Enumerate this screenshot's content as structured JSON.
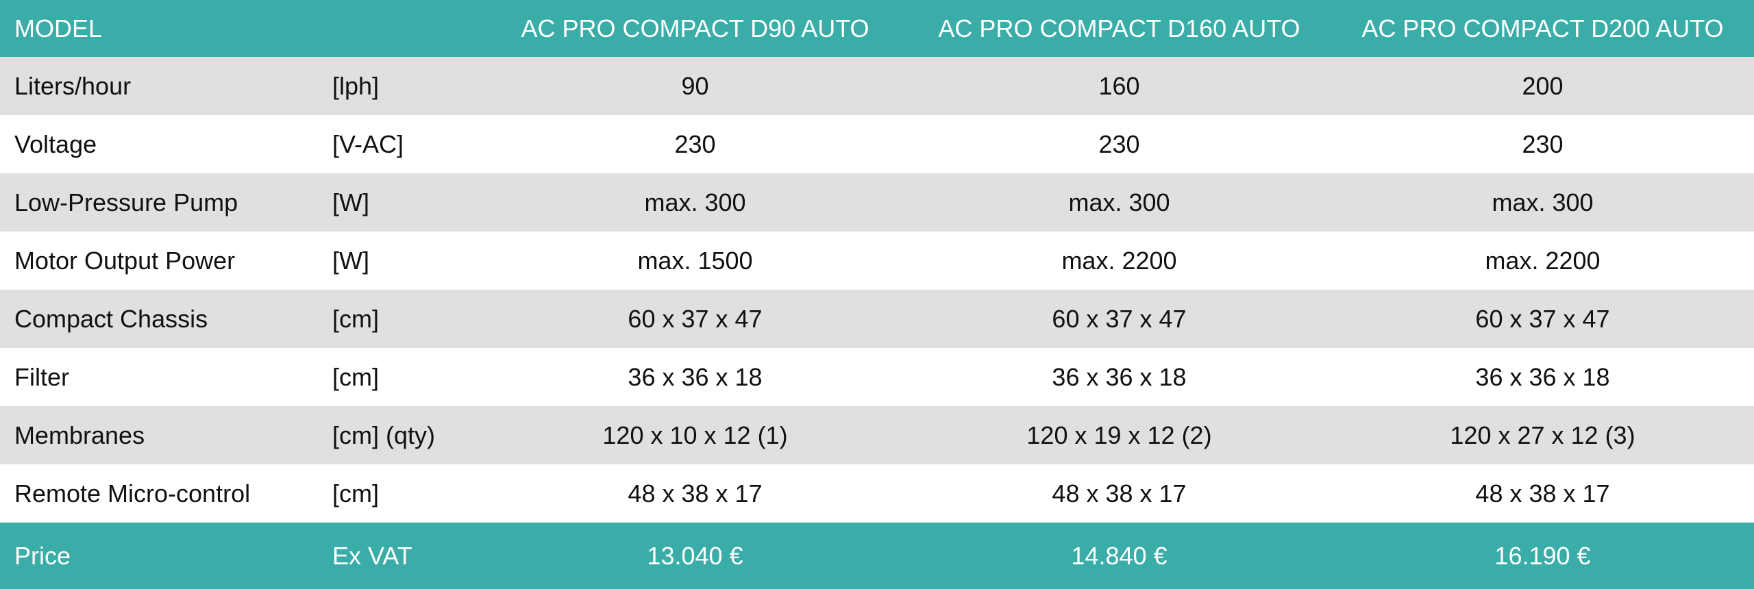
{
  "header": {
    "label": "MODEL",
    "models": [
      "AC PRO COMPACT D90 AUTO",
      "AC PRO COMPACT D160 AUTO",
      "AC PRO COMPACT D200 AUTO"
    ]
  },
  "rows": [
    [
      "Liters/hour",
      "[lph]",
      "90",
      "160",
      "200"
    ],
    [
      "Voltage",
      "[V-AC]",
      "230",
      "230",
      "230"
    ],
    [
      "Low-Pressure Pump",
      "[W]",
      "max. 300",
      "max. 300",
      "max. 300"
    ],
    [
      "Motor Output Power",
      "[W]",
      "max. 1500",
      "max. 2200",
      "max. 2200"
    ],
    [
      "Compact Chassis",
      "[cm]",
      "60 x 37 x 47",
      "60 x 37 x 47",
      "60 x 37 x 47"
    ],
    [
      "Filter",
      "[cm]",
      "36 x 36 x 18",
      "36 x 36 x 18",
      "36 x 36 x 18"
    ],
    [
      "Membranes",
      "[cm] (qty)",
      "120 x 10 x 12 (1)",
      "120 x 19 x 12 (2)",
      "120 x 27 x 12 (3)"
    ],
    [
      "Remote Micro-control",
      "[cm]",
      "48 x 38 x 17",
      "48 x 38 x 17",
      "48 x 38 x 17"
    ]
  ],
  "price": {
    "label": "Price",
    "unit": "Ex VAT",
    "values": [
      "13.040 €",
      "14.840 €",
      "16.190 €"
    ]
  }
}
